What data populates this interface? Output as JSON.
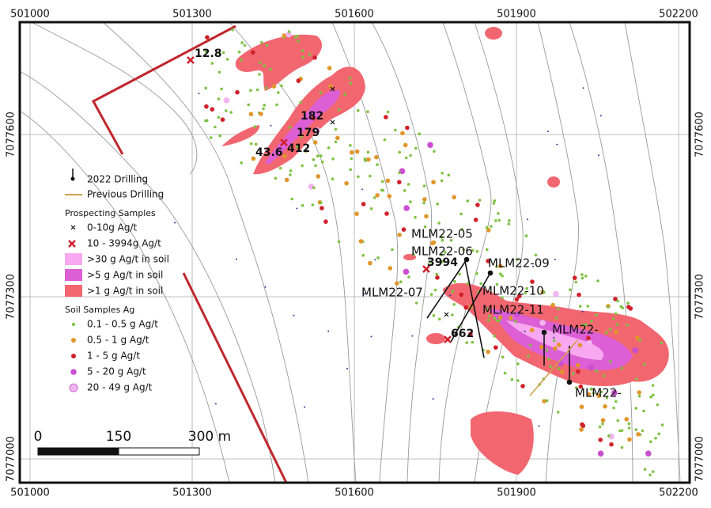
{
  "map": {
    "xticks": [
      501000,
      501300,
      501600,
      501900,
      502200
    ],
    "yticks": [
      7077600,
      7077300,
      7077000
    ],
    "legend": {
      "drilling_2022": "2022 Drilling",
      "previous_drilling": "Previous Drilling",
      "prospecting_title": "Prospecting Samples",
      "prospecting_low": "0-10g Ag/t",
      "prospecting_high": "10 - 3994g Ag/t",
      "soil_30": ">30 g Ag/t in soil",
      "soil_5": ">5 g Ag/t in soil",
      "soil_1": ">1 g Ag/t in soil",
      "soil_title": "Soil Samples Ag",
      "soil_classes": [
        "0.1 - 0.5 g Ag/t",
        "0.5 - 1 g Ag/t",
        "1 - 5 g Ag/t",
        "5 - 20 g Ag/t",
        "20 - 49 g Ag/t"
      ]
    },
    "drill_labels": [
      "MLM22-05",
      "MLM22-06",
      "MLM22-09",
      "MLM22-07",
      "MLM22-10",
      "MLM22-11",
      "MLM22-",
      "MLM22-"
    ],
    "sample_labels": [
      "12.8",
      "182",
      "179",
      "43.6",
      "412",
      "3994",
      "662"
    ],
    "scale_bar": [
      "0",
      "150",
      "300 m"
    ]
  }
}
